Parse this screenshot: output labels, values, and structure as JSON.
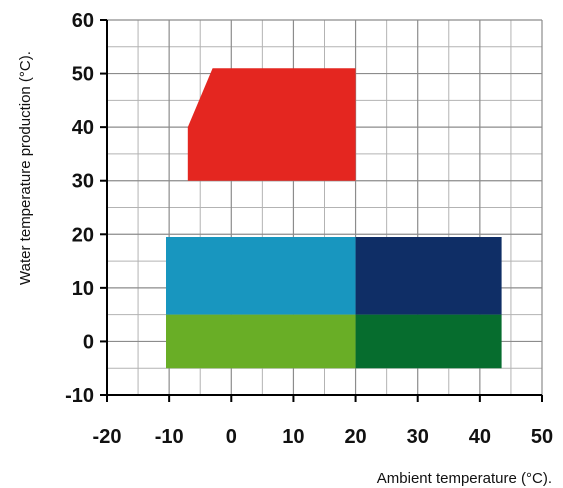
{
  "chart_data": {
    "type": "area",
    "xlabel": "Ambient temperature (°C).",
    "ylabel": "Water temperature production (°C).",
    "xlim": [
      -20,
      50
    ],
    "ylim": [
      -10,
      60
    ],
    "x_ticks": [
      -20,
      -10,
      0,
      10,
      20,
      30,
      40,
      50
    ],
    "y_ticks": [
      -10,
      0,
      10,
      20,
      30,
      40,
      50,
      60
    ],
    "grid": true,
    "regions": [
      {
        "color": "#e42620",
        "polygon": [
          [
            -7,
            30
          ],
          [
            -7,
            40
          ],
          [
            -3,
            51
          ],
          [
            20,
            51
          ],
          [
            20,
            30
          ]
        ]
      },
      {
        "color": "#1896bf",
        "polygon": [
          [
            -10.5,
            5
          ],
          [
            -10.5,
            19.5
          ],
          [
            20,
            19.5
          ],
          [
            20,
            5
          ]
        ]
      },
      {
        "color": "#0f2e66",
        "polygon": [
          [
            20,
            5
          ],
          [
            20,
            19.5
          ],
          [
            43.5,
            19.5
          ],
          [
            43.5,
            5
          ]
        ]
      },
      {
        "color": "#69ae26",
        "polygon": [
          [
            -10.5,
            -5
          ],
          [
            -10.5,
            5
          ],
          [
            20,
            5
          ],
          [
            20,
            -5
          ]
        ]
      },
      {
        "color": "#066d2e",
        "polygon": [
          [
            20,
            -5
          ],
          [
            20,
            5
          ],
          [
            43.5,
            5
          ],
          [
            43.5,
            -5
          ]
        ]
      }
    ]
  }
}
